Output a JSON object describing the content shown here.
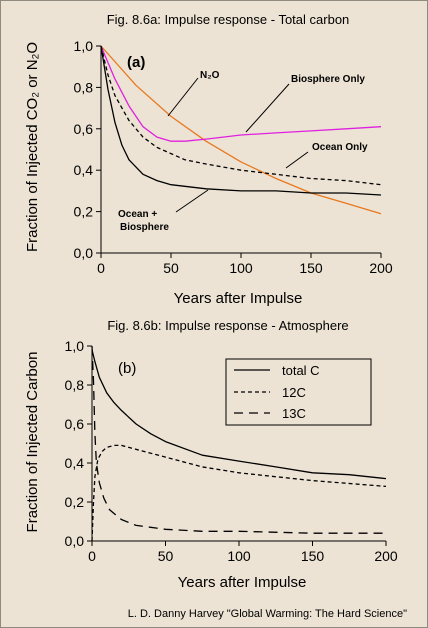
{
  "credit": "L. D. Danny Harvey \"Global Warming: The Hard Science\"",
  "chart_data": [
    {
      "type": "line",
      "title": "Fig. 8.6a: Impulse response - Total carbon",
      "panel_label": "(a)",
      "xlabel": "Years after Impulse",
      "ylabel": "Fraction of Injected CO₂ or N₂O",
      "xlim": [
        0,
        200
      ],
      "ylim": [
        0,
        1
      ],
      "xticks": [
        "0",
        "50",
        "100",
        "150",
        "200"
      ],
      "yticks": [
        "0,0",
        "0,2",
        "0,4",
        "0,6",
        "0,8",
        "1,0"
      ],
      "grid": false,
      "series": [
        {
          "name": "N₂O",
          "color": "#e8781e",
          "dash": "solid",
          "x": [
            0,
            25,
            50,
            75,
            100,
            125,
            150,
            175,
            200
          ],
          "y": [
            1.0,
            0.81,
            0.66,
            0.54,
            0.44,
            0.36,
            0.29,
            0.24,
            0.19
          ]
        },
        {
          "name": "Biosphere Only",
          "color": "#e020e0",
          "dash": "solid",
          "x": [
            0,
            5,
            10,
            20,
            30,
            40,
            50,
            60,
            75,
            100,
            125,
            150,
            175,
            200
          ],
          "y": [
            1.0,
            0.92,
            0.84,
            0.71,
            0.61,
            0.56,
            0.54,
            0.54,
            0.55,
            0.57,
            0.58,
            0.59,
            0.6,
            0.61
          ]
        },
        {
          "name": "Ocean Only",
          "color": "#000000",
          "dash": "dash",
          "x": [
            0,
            5,
            10,
            20,
            30,
            40,
            50,
            60,
            75,
            100,
            125,
            150,
            175,
            200
          ],
          "y": [
            1.0,
            0.86,
            0.76,
            0.64,
            0.56,
            0.51,
            0.48,
            0.45,
            0.43,
            0.4,
            0.38,
            0.36,
            0.35,
            0.33
          ]
        },
        {
          "name": "Ocean + Biosphere",
          "color": "#000000",
          "dash": "solid",
          "x": [
            0,
            5,
            10,
            15,
            20,
            30,
            40,
            50,
            75,
            100,
            125,
            150,
            175,
            200
          ],
          "y": [
            1.0,
            0.79,
            0.63,
            0.52,
            0.45,
            0.38,
            0.35,
            0.33,
            0.31,
            0.3,
            0.3,
            0.29,
            0.29,
            0.28
          ]
        }
      ],
      "annotations": [
        "N₂O",
        "Biosphere Only",
        "Ocean Only",
        "Ocean +",
        "Biosphere"
      ]
    },
    {
      "type": "line",
      "title": "Fig. 8.6b: Impulse response - Atmosphere",
      "panel_label": "(b)",
      "xlabel": "Years after Impulse",
      "ylabel": "Fraction of Injected Carbon",
      "xlim": [
        0,
        200
      ],
      "ylim": [
        0,
        1
      ],
      "xticks": [
        "0",
        "50",
        "100",
        "150",
        "200"
      ],
      "yticks": [
        "0,0",
        "0,2",
        "0,4",
        "0,6",
        "0,8",
        "1,0"
      ],
      "grid": false,
      "legend_position": "top-right",
      "series": [
        {
          "name": "total C",
          "color": "#000000",
          "dash": "solid",
          "x": [
            0,
            2,
            5,
            10,
            15,
            20,
            30,
            40,
            50,
            75,
            100,
            125,
            150,
            175,
            200
          ],
          "y": [
            0.98,
            0.92,
            0.84,
            0.76,
            0.71,
            0.67,
            0.6,
            0.55,
            0.51,
            0.44,
            0.41,
            0.38,
            0.35,
            0.34,
            0.32
          ]
        },
        {
          "name": "12C",
          "color": "#000000",
          "dash": "dash",
          "x": [
            0,
            1,
            2,
            4,
            7,
            10,
            15,
            20,
            25,
            35,
            50,
            75,
            100,
            150,
            200
          ],
          "y": [
            0.0,
            0.2,
            0.33,
            0.42,
            0.46,
            0.48,
            0.49,
            0.49,
            0.48,
            0.46,
            0.43,
            0.38,
            0.35,
            0.31,
            0.28
          ]
        },
        {
          "name": "13C",
          "color": "#000000",
          "dash": "longdash",
          "x": [
            0,
            1,
            2,
            3,
            5,
            8,
            12,
            20,
            30,
            50,
            75,
            100,
            150,
            200
          ],
          "y": [
            1.0,
            0.82,
            0.55,
            0.4,
            0.3,
            0.22,
            0.16,
            0.11,
            0.08,
            0.06,
            0.05,
            0.05,
            0.04,
            0.04
          ]
        }
      ]
    }
  ]
}
